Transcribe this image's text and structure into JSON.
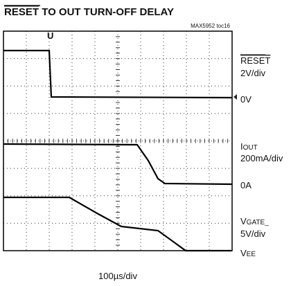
{
  "title": {
    "overlined": "RESET",
    "rest": "TO OUT TURN-OFF DELAY"
  },
  "figure_id": "MAX5952 toc16",
  "channels": [
    {
      "name": "RESET",
      "scale": "2V/div",
      "zero": "0V"
    },
    {
      "name": {
        "main": "I",
        "sub": "OUT"
      },
      "scale": "200mA/div",
      "zero": "0A"
    },
    {
      "name": {
        "main": "V",
        "sub": "GATE_"
      },
      "scale": "5V/div",
      "zero": {
        "main": "V",
        "sub": "EE"
      }
    }
  ],
  "timebase": "100µs/div"
}
